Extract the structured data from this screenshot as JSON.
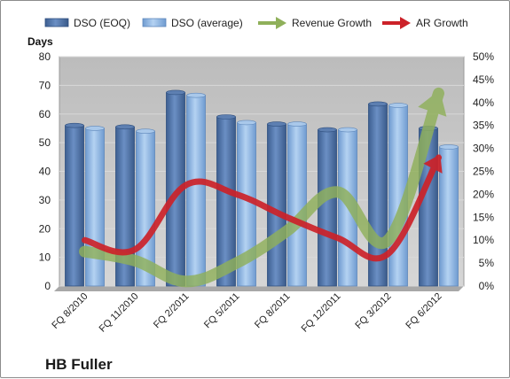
{
  "chart_data": {
    "type": "bar",
    "company": "HB Fuller",
    "ylabel": "Days",
    "ylim": [
      0,
      80
    ],
    "y2lim": [
      0,
      50
    ],
    "y_ticks": [
      "0",
      "10",
      "20",
      "30",
      "40",
      "50",
      "60",
      "70",
      "80"
    ],
    "y2_ticks": [
      "0%",
      "5%",
      "10%",
      "15%",
      "20%",
      "25%",
      "30%",
      "35%",
      "40%",
      "45%",
      "50%"
    ],
    "categories": [
      "FQ 8/2010",
      "FQ 11/2010",
      "FQ 2/2011",
      "FQ 5/2011",
      "FQ 8/2011",
      "FQ 12/2011",
      "FQ 3/2012",
      "FQ 6/2012"
    ],
    "series": [
      {
        "name": "DSO (EOQ)",
        "kind": "bar",
        "axis": "left",
        "color": "#4a6fa5",
        "values": [
          56,
          55.5,
          67.5,
          59,
          56.5,
          54.5,
          63.5,
          55
        ]
      },
      {
        "name": "DSO (average)",
        "kind": "bar",
        "axis": "left",
        "color": "#8cb4e0",
        "values": [
          55,
          54,
          66.5,
          57,
          56.5,
          54.5,
          63,
          48.5
        ]
      },
      {
        "name": "Revenue Growth",
        "kind": "line",
        "axis": "right",
        "color": "#8fb05a",
        "values": [
          7.5,
          5.5,
          1,
          5,
          12,
          20.5,
          10,
          42
        ]
      },
      {
        "name": "AR Growth",
        "kind": "line",
        "axis": "right",
        "color": "#cc2229",
        "values": [
          10,
          8,
          22,
          20,
          15,
          10.5,
          7,
          28
        ]
      }
    ],
    "legend": "top",
    "grid": true,
    "plot_background": "#c0c0c0"
  }
}
